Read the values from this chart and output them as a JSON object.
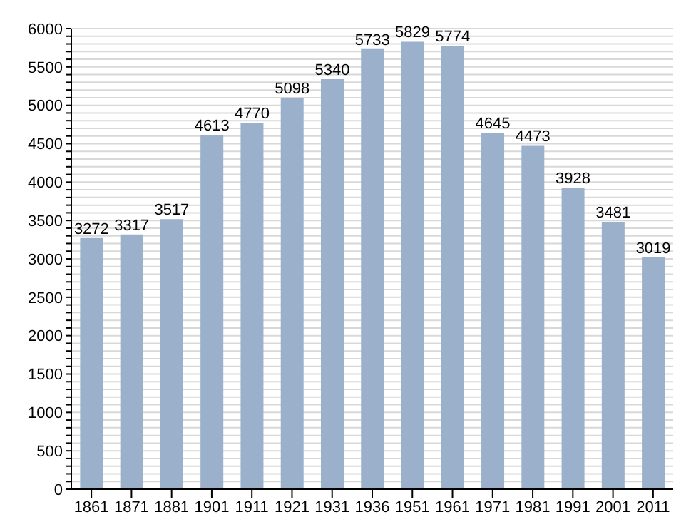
{
  "chart_data": {
    "type": "bar",
    "categories": [
      "1861",
      "1871",
      "1881",
      "1901",
      "1911",
      "1921",
      "1931",
      "1936",
      "1951",
      "1961",
      "1971",
      "1981",
      "1991",
      "2001",
      "2011"
    ],
    "values": [
      3272,
      3317,
      3517,
      4613,
      4770,
      5098,
      5340,
      5733,
      5829,
      5774,
      4645,
      4473,
      3928,
      3481,
      3019
    ],
    "color": "#9ab0cb",
    "data_labels": true,
    "grid": "y",
    "ylim": [
      0,
      6000
    ],
    "yticks": [
      0,
      {
        "value": 100,
        "label": null
      },
      {
        "value": 200,
        "label": null
      },
      {
        "value": 300,
        "label": null
      },
      {
        "value": 400,
        "label": null
      },
      500,
      {
        "value": 600,
        "label": null
      },
      {
        "value": 700,
        "label": null
      },
      {
        "value": 800,
        "label": null
      },
      {
        "value": 900,
        "label": null
      },
      1000,
      {
        "value": 1100,
        "label": null
      },
      {
        "value": 1200,
        "label": null
      },
      {
        "value": 1300,
        "label": null
      },
      {
        "value": 1400,
        "label": null
      },
      1500,
      {
        "value": 1600,
        "label": null
      },
      {
        "value": 1700,
        "label": null
      },
      {
        "value": 1800,
        "label": null
      },
      {
        "value": 1900,
        "label": null
      },
      2000,
      {
        "value": 2100,
        "label": null
      },
      {
        "value": 2200,
        "label": null
      },
      {
        "value": 2300,
        "label": null
      },
      {
        "value": 2400,
        "label": null
      },
      2500,
      {
        "value": 2600,
        "label": null
      },
      {
        "value": 2700,
        "label": null
      },
      {
        "value": 2800,
        "label": null
      },
      {
        "value": 2900,
        "label": null
      },
      3000,
      {
        "value": 3100,
        "label": null
      },
      {
        "value": 3200,
        "label": null
      },
      {
        "value": 3300,
        "label": null
      },
      {
        "value": 3400,
        "label": null
      },
      3500,
      {
        "value": 3600,
        "label": null
      },
      {
        "value": 3700,
        "label": null
      },
      {
        "value": 3800,
        "label": null
      },
      {
        "value": 3900,
        "label": null
      },
      4000,
      {
        "value": 4100,
        "label": null
      },
      {
        "value": 4200,
        "label": null
      },
      {
        "value": 4300,
        "label": null
      },
      {
        "value": 4400,
        "label": null
      },
      4500,
      {
        "value": 4600,
        "label": null
      },
      {
        "value": 4700,
        "label": null
      },
      {
        "value": 4800,
        "label": null
      },
      {
        "value": 4900,
        "label": null
      },
      5000,
      {
        "value": 5100,
        "label": null
      },
      {
        "value": 5200,
        "label": null
      },
      {
        "value": 5300,
        "label": null
      },
      {
        "value": 5400,
        "label": null
      },
      5500,
      {
        "value": 5600,
        "label": null
      },
      {
        "value": 5700,
        "label": null
      },
      {
        "value": 5800,
        "label": null
      },
      {
        "value": 5900,
        "label": null
      },
      6000
    ]
  }
}
